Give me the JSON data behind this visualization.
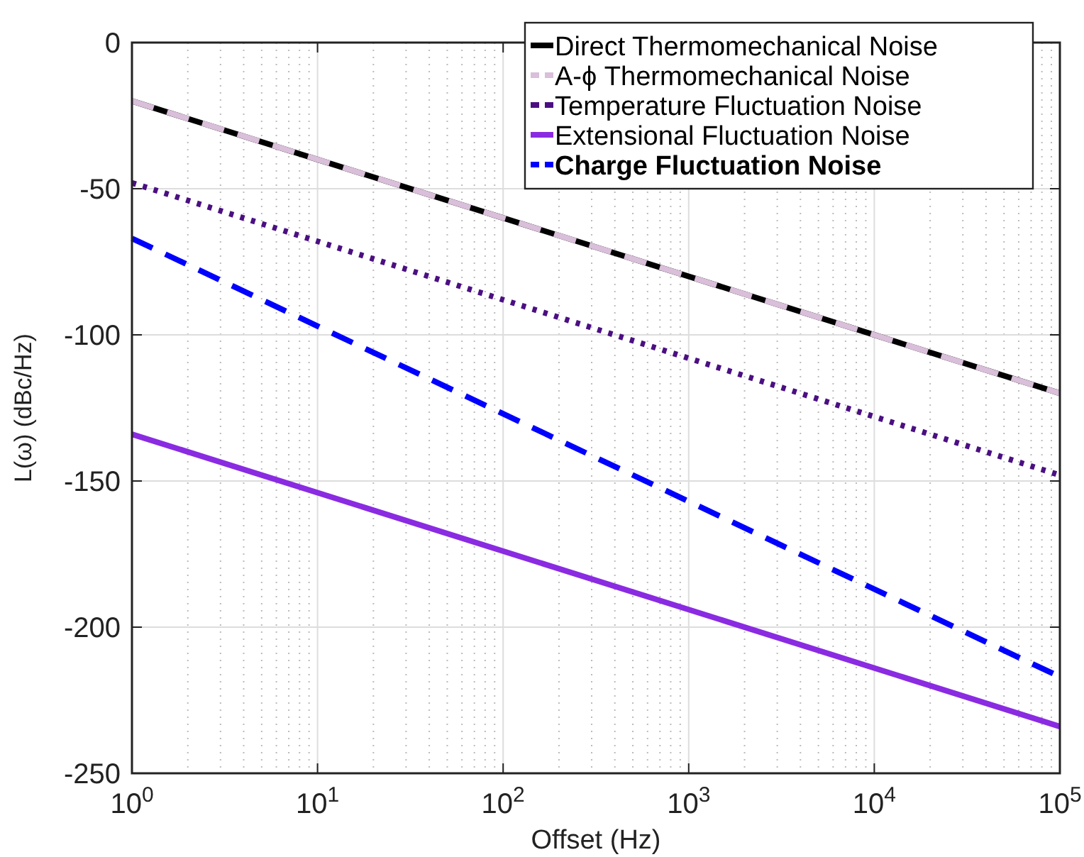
{
  "chart_data": {
    "type": "line",
    "xlabel": "Offset (Hz)",
    "ylabel": "L(ω) (dBc/Hz)",
    "log": "x",
    "grid": true,
    "legend": "top right",
    "x": [
      1,
      100000
    ],
    "xlim": [
      1,
      100000
    ],
    "xticks": [
      {
        "value": 1,
        "label": "10$^{0}$"
      },
      {
        "value": 10,
        "label": "10$^{1}$"
      },
      {
        "value": 100,
        "label": "10$^{2}$"
      },
      {
        "value": 1000,
        "label": "10$^{3}$"
      },
      {
        "value": 10000,
        "label": "10$^{4}$"
      },
      {
        "value": 100000,
        "label": "10$^{5}$"
      }
    ],
    "ylim": [
      -250,
      0
    ],
    "yticks": [
      -250,
      -200,
      -150,
      -100,
      -50,
      0
    ],
    "series": [
      {
        "name": "Direct Thermomechanical Noise",
        "color": "#000000",
        "line_style": "solid",
        "values": [
          -20,
          -120
        ]
      },
      {
        "name": "A-ϕ Thermomechanical Noise",
        "color": "#d9bfd9",
        "line_style": "dashed",
        "values": [
          -20,
          -120
        ]
      },
      {
        "name": "Temperature Fluctuation Noise",
        "color": "#4b0f82",
        "line_style": "dotted",
        "values": [
          -48,
          -148
        ]
      },
      {
        "name": "Extensional Fluctuation Noise",
        "color": "#8a2be2",
        "line_style": "solid",
        "values": [
          -134,
          -234
        ]
      },
      {
        "name": "Charge Fluctuation Noise",
        "color": "#0000ff",
        "line_style": "dashed",
        "values": [
          -67,
          -217
        ]
      }
    ]
  }
}
